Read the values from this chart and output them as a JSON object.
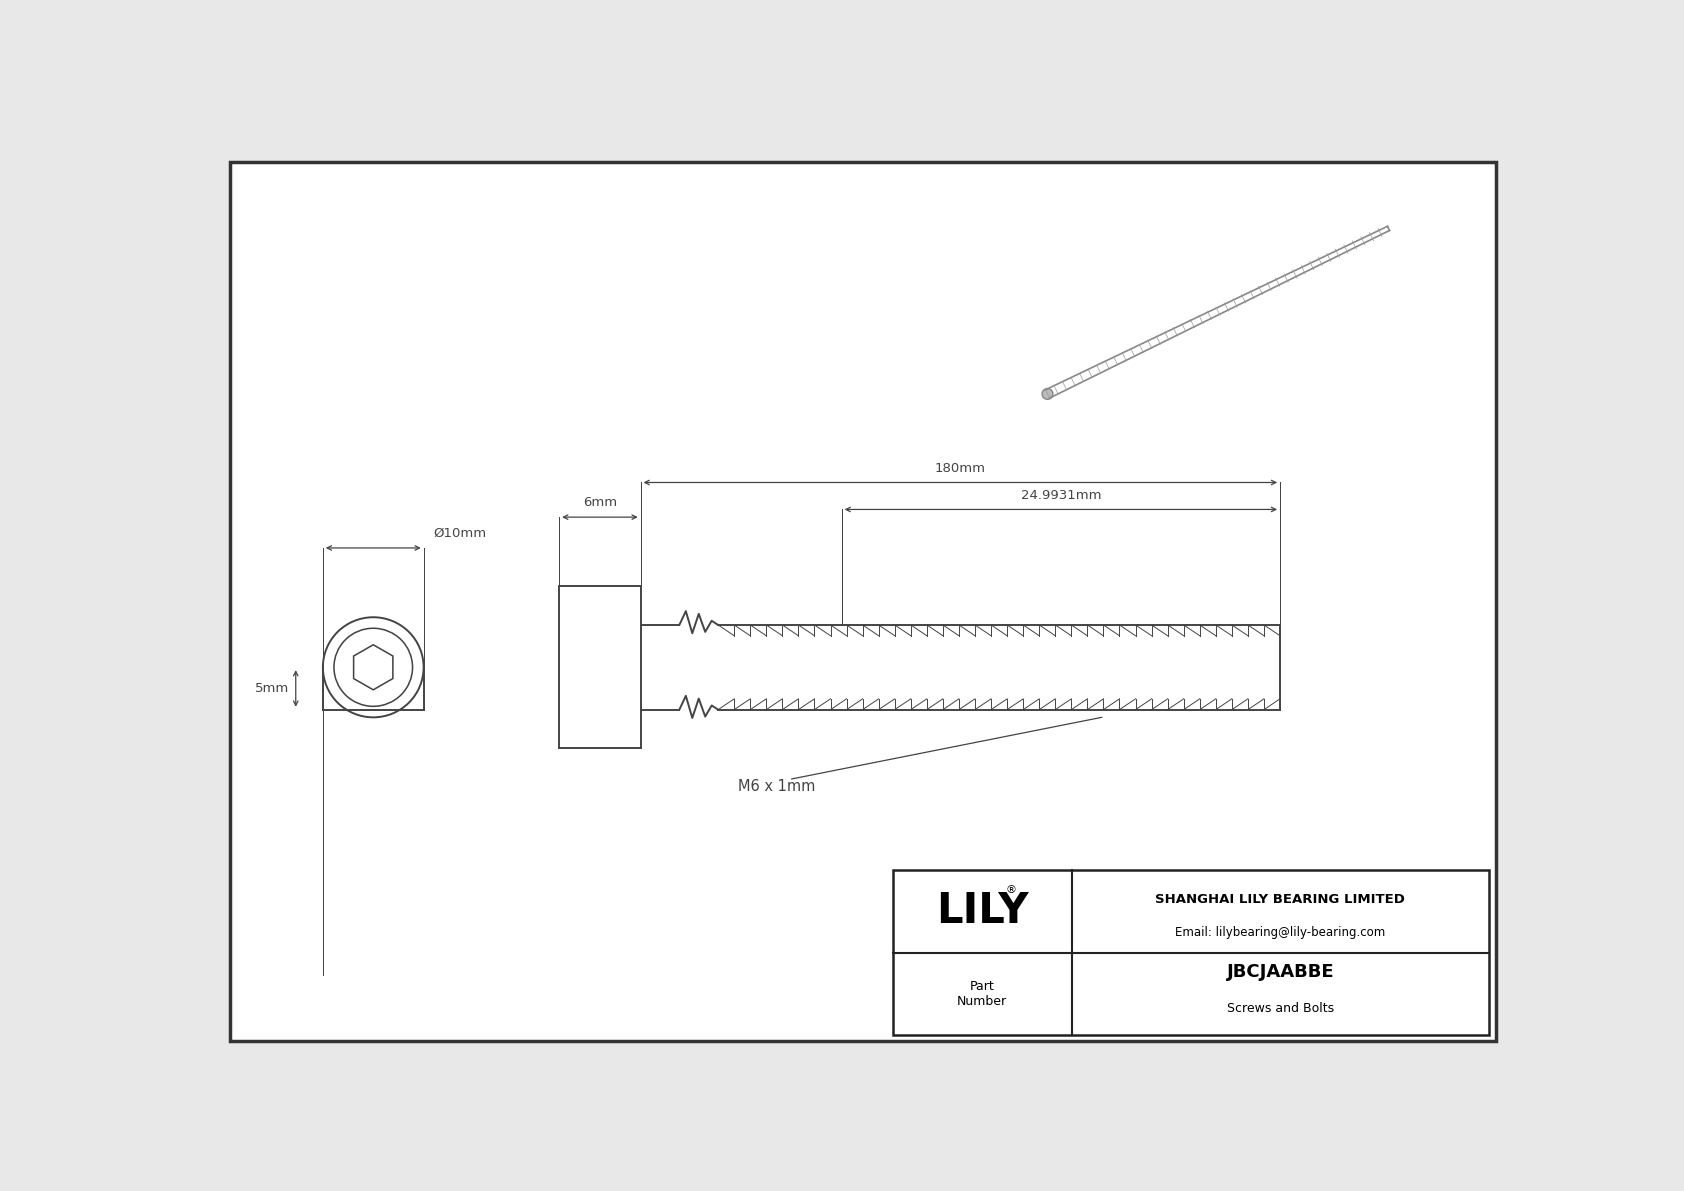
{
  "bg_color": "#e8e8e8",
  "drawing_bg": "#ffffff",
  "line_color": "#444444",
  "dim_color": "#444444",
  "border_color": "#333333",
  "title": "JBCJAABBE",
  "subtitle": "Screws and Bolts",
  "company": "SHANGHAI LILY BEARING LIMITED",
  "email": "Email: lilybearing@lily-bearing.com",
  "part_label": "Part\nNumber",
  "logo": "LILY",
  "dim_diameter": "Ø10mm",
  "dim_head_len": "6mm",
  "dim_total_len": "180mm",
  "dim_thread_len": "24.9931mm",
  "dim_height": "5mm",
  "thread_label": "M6 x 1mm"
}
